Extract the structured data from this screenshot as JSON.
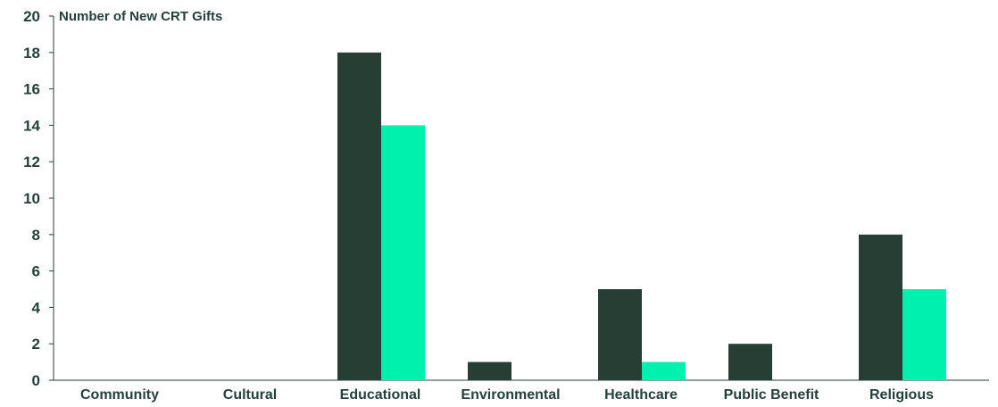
{
  "chart_data": {
    "type": "bar",
    "ylabel": "Number of New CRT Gifts",
    "ylim": [
      0,
      20
    ],
    "yticks": [
      0,
      2,
      4,
      6,
      8,
      10,
      12,
      14,
      16,
      18,
      20
    ],
    "categories": [
      "Community",
      "Cultural",
      "Educational",
      "Environmental",
      "Healthcare",
      "Public Benefit",
      "Religious"
    ],
    "series": [
      {
        "color": "#263e34",
        "values": [
          0,
          0,
          18,
          1,
          5,
          2,
          8
        ]
      },
      {
        "color": "#00f0ae",
        "values": [
          0,
          0,
          14,
          0,
          1,
          0,
          5
        ]
      }
    ],
    "grid": false,
    "legend": "none"
  }
}
